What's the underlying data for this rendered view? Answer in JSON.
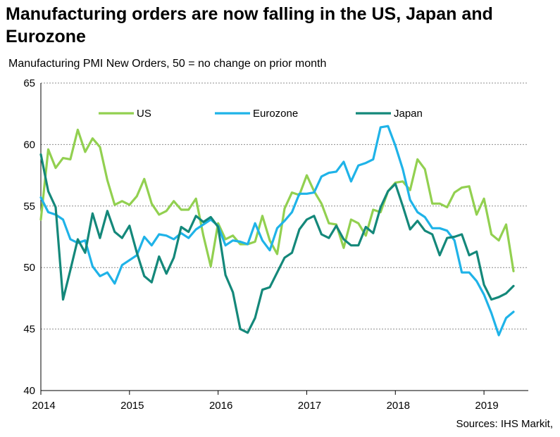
{
  "title": "Manufacturing orders are now falling in the US, Japan and Eurozone",
  "subtitle": "Manufacturing PMI New Orders, 50 = no change on prior month",
  "source": "Sources: IHS Markit,",
  "colors": {
    "US": "#92d050",
    "Eurozone": "#1fb3e8",
    "Japan": "#14887a",
    "grid": "#8c8c8c"
  },
  "chart_data": {
    "type": "line",
    "title": "Manufacturing orders are now falling in the US, Japan and Eurozone",
    "subtitle": "Manufacturing PMI New Orders, 50 = no change on prior month",
    "ylim": [
      40,
      65
    ],
    "yticks": [
      40,
      45,
      50,
      55,
      60,
      65
    ],
    "xlim": [
      "2014-01",
      "2019-06"
    ],
    "xticks": [
      "2014",
      "2015",
      "2016",
      "2017",
      "2018",
      "2019"
    ],
    "grid": "horizontal-dotted",
    "legend": "top",
    "x_start": "2014-01",
    "x_step": "month",
    "series": [
      {
        "name": "US",
        "values": [
          53.9,
          59.6,
          58.1,
          58.9,
          58.8,
          61.2,
          59.4,
          60.5,
          59.8,
          57.1,
          55.1,
          55.4,
          55.1,
          55.8,
          57.2,
          55.2,
          54.3,
          54.6,
          55.4,
          54.7,
          54.7,
          55.6,
          52.6,
          50.1,
          53.6,
          52.3,
          52.6,
          51.9,
          51.9,
          52.1,
          54.2,
          52.2,
          51.1,
          54.8,
          56.1,
          55.9,
          57.5,
          56.2,
          55.2,
          53.6,
          53.5,
          51.6,
          53.9,
          53.6,
          52.6,
          54.7,
          54.5,
          56.2,
          56.9,
          57.0,
          56.3,
          58.8,
          58.0,
          55.2,
          55.2,
          54.9,
          56.1,
          56.5,
          56.6,
          54.3,
          55.6,
          52.7,
          52.2,
          53.5,
          49.7
        ]
      },
      {
        "name": "Eurozone",
        "values": [
          55.7,
          54.5,
          54.3,
          53.9,
          52.3,
          52.0,
          52.2,
          50.1,
          49.3,
          49.6,
          48.7,
          50.2,
          50.6,
          51.0,
          52.5,
          51.8,
          52.7,
          52.6,
          52.3,
          52.8,
          52.4,
          53.1,
          53.5,
          53.9,
          53.4,
          51.8,
          52.2,
          52.1,
          51.9,
          53.6,
          52.2,
          51.4,
          53.2,
          53.8,
          54.5,
          56.0,
          56.0,
          56.1,
          57.4,
          57.7,
          57.8,
          58.6,
          57.0,
          58.3,
          58.5,
          58.8,
          61.4,
          61.5,
          59.9,
          58.0,
          55.5,
          54.5,
          54.1,
          53.2,
          53.2,
          53.0,
          52.2,
          49.6,
          49.6,
          48.9,
          47.8,
          46.3,
          44.5,
          45.9,
          46.4
        ]
      },
      {
        "name": "Japan",
        "values": [
          59.2,
          56.2,
          54.9,
          47.4,
          49.8,
          52.3,
          51.2,
          54.4,
          52.4,
          54.6,
          52.9,
          52.4,
          53.4,
          51.2,
          49.3,
          48.8,
          50.9,
          49.5,
          50.8,
          53.3,
          52.9,
          54.2,
          53.7,
          54.1,
          53.3,
          49.4,
          48.0,
          45.0,
          44.7,
          45.9,
          48.2,
          48.4,
          49.6,
          50.8,
          51.2,
          53.1,
          53.9,
          54.2,
          52.7,
          52.4,
          53.4,
          52.3,
          51.8,
          51.8,
          53.3,
          52.8,
          54.9,
          56.2,
          56.8,
          55.0,
          53.1,
          53.8,
          53.0,
          52.7,
          51.0,
          52.4,
          52.5,
          52.7,
          51.0,
          51.3,
          48.6,
          47.4,
          47.6,
          47.9,
          48.5
        ]
      }
    ]
  }
}
